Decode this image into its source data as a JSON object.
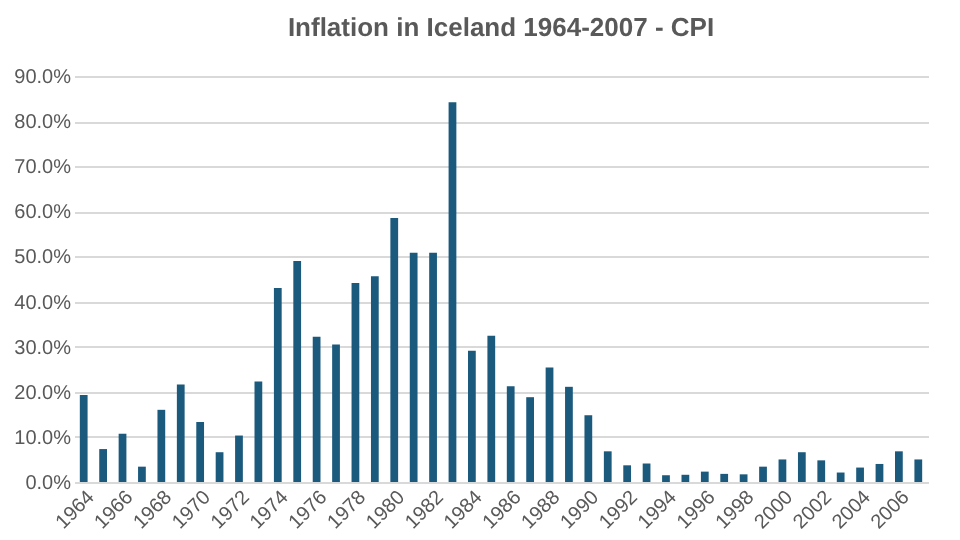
{
  "chart_data": {
    "type": "bar",
    "title": "Inflation in Iceland 1964-2007 - CPI",
    "categories": [
      "1964",
      null,
      "1966",
      null,
      "1968",
      null,
      "1970",
      null,
      "1972",
      null,
      "1974",
      null,
      "1976",
      null,
      "1978",
      null,
      "1980",
      null,
      "1982",
      null,
      "1984",
      null,
      "1986",
      null,
      "1988",
      null,
      "1990",
      null,
      "1992",
      null,
      "1994",
      null,
      "1996",
      null,
      "1998",
      null,
      "2000",
      null,
      "2002",
      null,
      "2004",
      null,
      "2006",
      null
    ],
    "values": [
      19.3,
      7.3,
      10.7,
      3.4,
      16.0,
      21.6,
      13.3,
      6.6,
      10.3,
      22.3,
      43.0,
      49.0,
      32.2,
      30.5,
      44.1,
      45.6,
      58.5,
      50.8,
      50.8,
      84.2,
      29.1,
      32.4,
      21.2,
      18.8,
      25.4,
      21.1,
      14.8,
      6.8,
      3.7,
      4.1,
      1.5,
      1.6,
      2.3,
      1.8,
      1.7,
      3.4,
      5.0,
      6.6,
      4.8,
      2.1,
      3.2,
      4.0,
      6.8,
      5.0
    ],
    "color": "#1b5a7d",
    "ylim": [
      0,
      90
    ],
    "yticks": [
      {
        "value": 0,
        "label": "0.0%"
      },
      {
        "value": 10,
        "label": "10.0%"
      },
      {
        "value": 20,
        "label": "20.0%"
      },
      {
        "value": 30,
        "label": "30.0%"
      },
      {
        "value": 40,
        "label": "40.0%"
      },
      {
        "value": 50,
        "label": "50.0%"
      },
      {
        "value": 60,
        "label": "60.0%"
      },
      {
        "value": 70,
        "label": "70.0%"
      },
      {
        "value": 80,
        "label": "80.0%"
      },
      {
        "value": 90,
        "label": "90.0%"
      }
    ],
    "grid": "y"
  }
}
